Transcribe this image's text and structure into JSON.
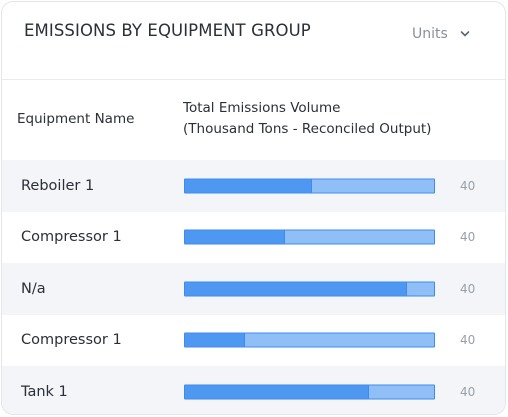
{
  "header": {
    "title": "EMISSIONS BY EQUIPMENT GROUP",
    "units_label": "Units",
    "units_icon": "chevron-down-icon"
  },
  "columns": {
    "name": "Equipment Name",
    "volume_line1": "Total Emissions Volume",
    "volume_line2": "(Thousand Tons - Reconciled Output)"
  },
  "colors": {
    "bar_fill": "#4f98f2",
    "bar_track": "#90bff7",
    "bar_border": "#3f8bec"
  },
  "rows": [
    {
      "name": "Reboiler 1",
      "fill_fraction": 0.51,
      "value": "40"
    },
    {
      "name": "Compressor 1",
      "fill_fraction": 0.4,
      "value": "40"
    },
    {
      "name": "N/a",
      "fill_fraction": 0.89,
      "value": "40"
    },
    {
      "name": "Compressor 1",
      "fill_fraction": 0.24,
      "value": "40"
    },
    {
      "name": "Tank 1",
      "fill_fraction": 0.74,
      "value": "40"
    }
  ]
}
